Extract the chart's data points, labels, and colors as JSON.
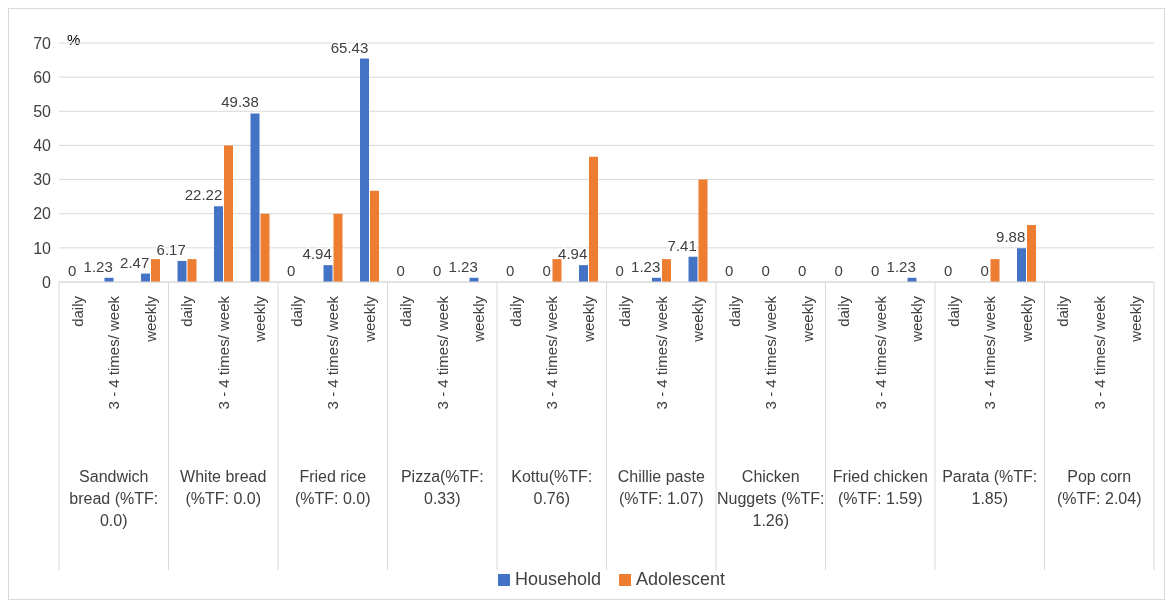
{
  "chart_data": {
    "type": "bar",
    "ylabel": "%",
    "categories": [
      "daily",
      "3 - 4 times/ week",
      "weekly",
      "daily",
      "3 - 4 times/ week",
      "weekly",
      "daily",
      "3 - 4 times/ week",
      "weekly",
      "daily",
      "3 - 4 times/ week",
      "weekly",
      "daily",
      "3 - 4 times/ week",
      "weekly",
      "daily",
      "3 - 4 times/ week",
      "weekly",
      "daily",
      "3 - 4 times/ week",
      "weekly",
      "daily",
      "3 - 4 times/ week",
      "weekly",
      "daily",
      "3 - 4 times/ week",
      "weekly",
      "daily",
      "3 - 4 times/ week",
      "weekly"
    ],
    "annotations": [
      "Sandwich bread (%TF: 0.0)",
      "White bread (%TF: 0.0)",
      "Fried rice (%TF: 0.0)",
      "Pizza(%TF: 0.33)",
      "Kottu(%TF: 0.76)",
      "Chillie paste (%TF: 1.07)",
      "Chicken Nuggets (%TF: 1.26)",
      "Fried chicken (%TF: 1.59)",
      "Parata (%TF: 1.85)",
      "Pop corn (%TF: 2.04)"
    ],
    "series": [
      {
        "name": "Household",
        "color": "#4472c4",
        "values": [
          0,
          1.23,
          2.47,
          6.17,
          22.22,
          49.38,
          0,
          4.94,
          65.43,
          0,
          0,
          1.23,
          0,
          0,
          4.94,
          0,
          1.23,
          7.41,
          0,
          0,
          0,
          0,
          0,
          1.23,
          0,
          0,
          9.88,
          null,
          null,
          null
        ],
        "value_labels": [
          "0",
          "1.23",
          "2.47",
          "6.17",
          "22.22",
          "49.38",
          "0",
          "4.94",
          "65.43",
          "0",
          "0",
          "1.23",
          "0",
          "0",
          "4.94",
          "0",
          "1.23",
          "7.41",
          "0",
          "0",
          "0",
          "0",
          "0",
          "1.23",
          "0",
          "0",
          "9.88",
          null,
          null,
          null
        ]
      },
      {
        "name": "Adolescent",
        "color": "#ed7d31",
        "values": [
          0,
          0,
          6.7,
          6.7,
          40,
          20,
          0,
          20,
          26.7,
          0,
          0,
          0,
          0,
          6.7,
          36.7,
          0,
          6.7,
          30,
          0,
          0,
          0,
          0,
          0,
          0,
          0,
          6.7,
          16.7,
          null,
          null,
          null
        ]
      }
    ],
    "ylim": [
      0,
      70
    ],
    "yticks": [
      0,
      10,
      20,
      30,
      40,
      50,
      60,
      70
    ],
    "grid": "y",
    "legend": "bottom"
  }
}
